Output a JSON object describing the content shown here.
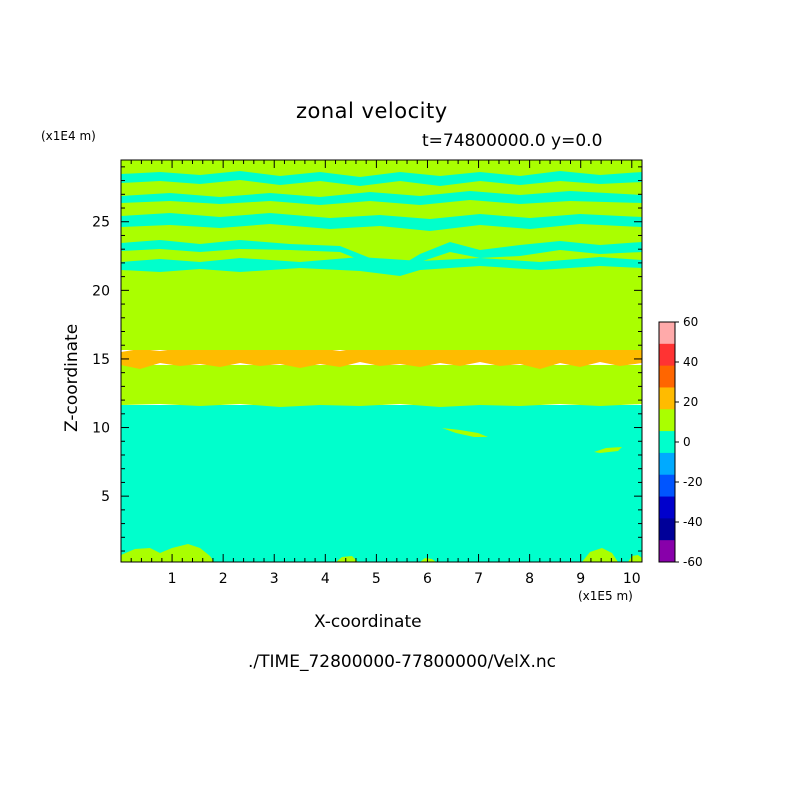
{
  "chart_data": {
    "type": "heatmap",
    "title": "zonal velocity",
    "subtitle": "t=74800000.0 y=0.0",
    "xlabel": "X-coordinate",
    "ylabel": "Z-coordinate",
    "x_unit": "(x1E5 m)",
    "y_unit": "(x1E4 m)",
    "source_file": "./TIME_72800000-77800000/VelX.nc",
    "xlim": [
      0,
      10.2
    ],
    "ylim": [
      0.2,
      29.5
    ],
    "x_ticks": [
      "1",
      "2",
      "3",
      "4",
      "5",
      "6",
      "7",
      "8",
      "9",
      "10"
    ],
    "y_ticks": [
      "5",
      "10",
      "15",
      "20",
      "25"
    ],
    "colorbar": {
      "labels": [
        "60",
        "40",
        "20",
        "0",
        "-20",
        "-40",
        "-60"
      ],
      "colors": [
        "#ffaaaa",
        "#ff3333",
        "#ff6600",
        "#ffbb00",
        "#aaff00",
        "#00ffcc",
        "#00aaff",
        "#0055ff",
        "#0000cc",
        "#000099",
        "#8800aa"
      ]
    },
    "bands": [
      {
        "z_min": 0.2,
        "z_max": 11.7,
        "range": "-10 to 0",
        "color": "#00ffcc"
      },
      {
        "z_min": 11.7,
        "z_max": 14.8,
        "range": "0 to 10",
        "color": "#aaff00"
      },
      {
        "z_min": 14.8,
        "z_max": 15.9,
        "range": "10 to 20",
        "color": "#ffbb00"
      },
      {
        "z_min": 15.9,
        "z_max": 21.5,
        "range": "0 to 10",
        "color": "#aaff00"
      },
      {
        "z_min": 21.5,
        "z_max": 29.5,
        "range": "alternating -10 to 10",
        "color": "#aaff00"
      }
    ]
  }
}
